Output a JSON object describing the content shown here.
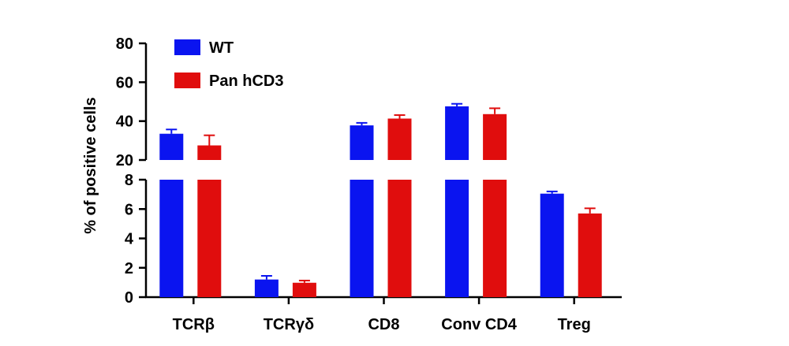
{
  "chart_data": {
    "type": "bar",
    "ylabel": "% of positive cells",
    "xlabel": "",
    "categories": [
      "TCRβ",
      "TCRγδ",
      "CD8",
      "Conv CD4",
      "Treg"
    ],
    "series": [
      {
        "name": "WT",
        "color": "#0a14f0",
        "values": [
          33.5,
          1.2,
          37.8,
          47.6,
          7.05
        ],
        "errors": [
          2.2,
          0.25,
          1.3,
          1.3,
          0.15
        ]
      },
      {
        "name": "Pan hCD3",
        "color": "#e00d0d",
        "values": [
          27.5,
          0.98,
          41.3,
          43.6,
          5.7
        ],
        "errors": [
          5.2,
          0.15,
          1.8,
          3.0,
          0.35
        ]
      }
    ],
    "y_axis_segments": [
      {
        "ylim": [
          0,
          8
        ],
        "ticks": [
          "0",
          "2",
          "4",
          "6",
          "8"
        ]
      },
      {
        "ylim": [
          20,
          80
        ],
        "ticks": [
          "20",
          "40",
          "60",
          "80"
        ]
      }
    ],
    "axis_break": true,
    "grid": false,
    "legend_placement": "top-left"
  }
}
